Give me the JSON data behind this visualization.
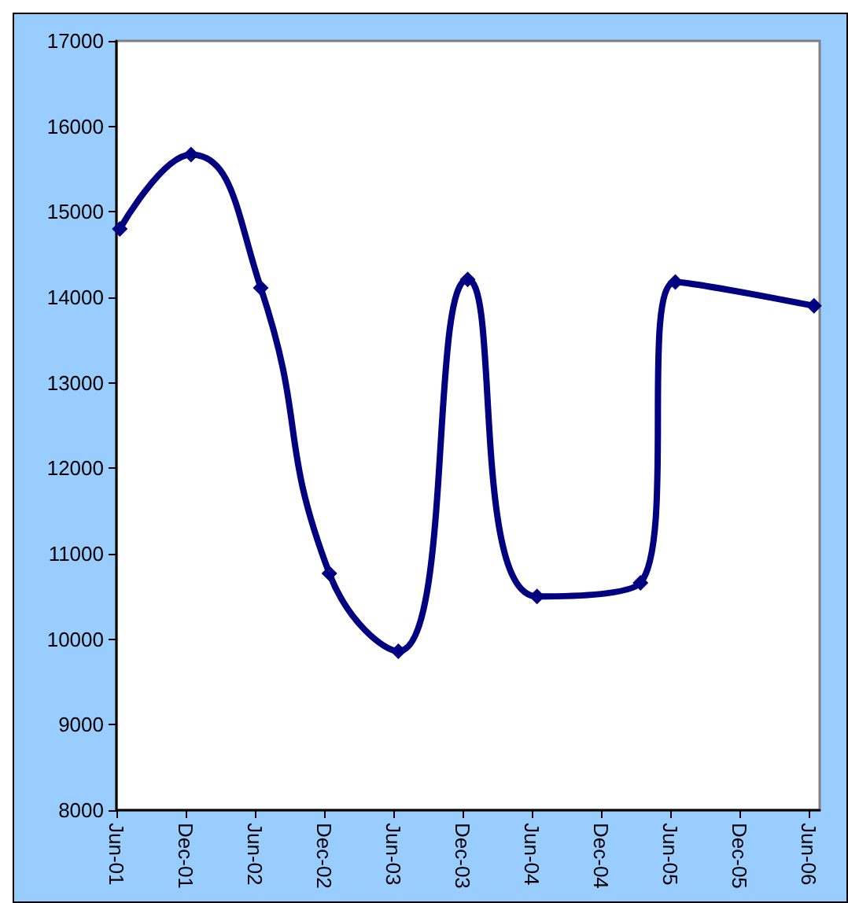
{
  "chart_data": {
    "type": "line",
    "x": [
      "2001-06-10",
      "2001-12-15",
      "2002-06-17",
      "2002-12-15",
      "2003-06-15",
      "2003-12-15",
      "2004-06-15",
      "2005-03-15",
      "2005-06-15",
      "2006-06-16"
    ],
    "series": [
      {
        "color": "#000080",
        "values": [
          14800,
          15670,
          14110,
          10770,
          9860,
          14210,
          10500,
          10660,
          14180,
          13900
        ]
      }
    ],
    "xlim": [
      "2001-06",
      "2006-07"
    ],
    "xticks": [
      {
        "value": "2001-06",
        "label": "Jun-01"
      },
      {
        "value": "2001-12",
        "label": "Dec-01"
      },
      {
        "value": "2002-06",
        "label": "Jun-02"
      },
      {
        "value": "2002-12",
        "label": "Dec-02"
      },
      {
        "value": "2003-06",
        "label": "Jun-03"
      },
      {
        "value": "2003-12",
        "label": "Dec-03"
      },
      {
        "value": "2004-06",
        "label": "Jun-04"
      },
      {
        "value": "2004-12",
        "label": "Dec-04"
      },
      {
        "value": "2005-06",
        "label": "Jun-05"
      },
      {
        "value": "2005-12",
        "label": "Dec-05"
      },
      {
        "value": "2006-06",
        "label": "Jun-06"
      }
    ],
    "ylim": [
      8000,
      17000
    ],
    "yticks": [
      8000,
      9000,
      10000,
      11000,
      12000,
      13000,
      14000,
      15000,
      16000,
      17000
    ],
    "grid": false,
    "marker": "diamond",
    "line_style": "solid"
  }
}
